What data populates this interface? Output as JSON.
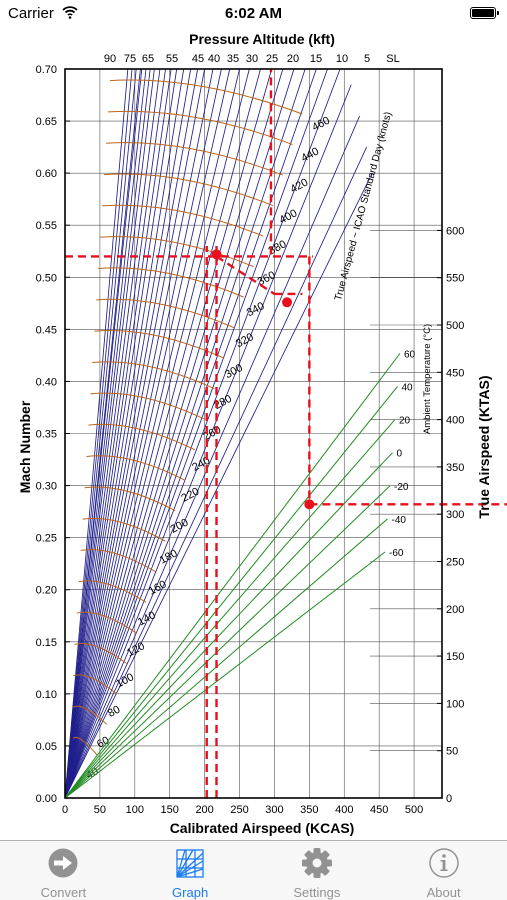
{
  "status_bar": {
    "carrier": "Carrier",
    "time": "6:02 AM"
  },
  "graph": {
    "top_axis_title": "Pressure Altitude (kft)",
    "top_ticks": [
      "90",
      "75",
      "65",
      "55",
      "45",
      "40",
      "35",
      "30",
      "25",
      "20",
      "15",
      "10",
      "5",
      "SL"
    ],
    "left_axis_title": "Mach Number",
    "left_ticks": [
      "0.00",
      "0.05",
      "0.10",
      "0.15",
      "0.20",
      "0.25",
      "0.30",
      "0.35",
      "0.40",
      "0.45",
      "0.50",
      "0.55",
      "0.60",
      "0.65",
      "0.70"
    ],
    "bottom_axis_title": "Calibrated Airspeed (KCAS)",
    "bottom_ticks": [
      "0",
      "50",
      "100",
      "150",
      "200",
      "250",
      "300",
      "350",
      "400",
      "450",
      "500"
    ],
    "right_axis_title": "True Airspeed (KTAS)",
    "right_ticks": [
      "0",
      "50",
      "100",
      "150",
      "200",
      "250",
      "300",
      "350",
      "400",
      "450",
      "500",
      "550",
      "600"
    ],
    "tas_annotation": "True Airspeed ~ ICAO Standard Day (knots)",
    "tas_labels": [
      "40",
      "60",
      "80",
      "100",
      "120",
      "140",
      "160",
      "180",
      "200",
      "220",
      "240",
      "260",
      "280",
      "300",
      "320",
      "340",
      "360",
      "380",
      "400",
      "420",
      "440",
      "460"
    ],
    "temperature_title": "Ambient Temperature (°C)",
    "temperature_labels": [
      "60",
      "40",
      "20",
      "0",
      "-20",
      "-40",
      "-60"
    ],
    "colors": {
      "altitude_lines": "#1f1f8c",
      "tas_curves": "#c06418",
      "temperature_lines": "#228b22",
      "solution": "#e8101c",
      "grid": "#555555"
    }
  },
  "tabs": [
    {
      "label": "Convert",
      "icon": "arrow-circle-icon",
      "active": false
    },
    {
      "label": "Graph",
      "icon": "graph-icon",
      "active": true
    },
    {
      "label": "Settings",
      "icon": "gear-icon",
      "active": false
    },
    {
      "label": "About",
      "icon": "info-icon",
      "active": false
    }
  ]
}
